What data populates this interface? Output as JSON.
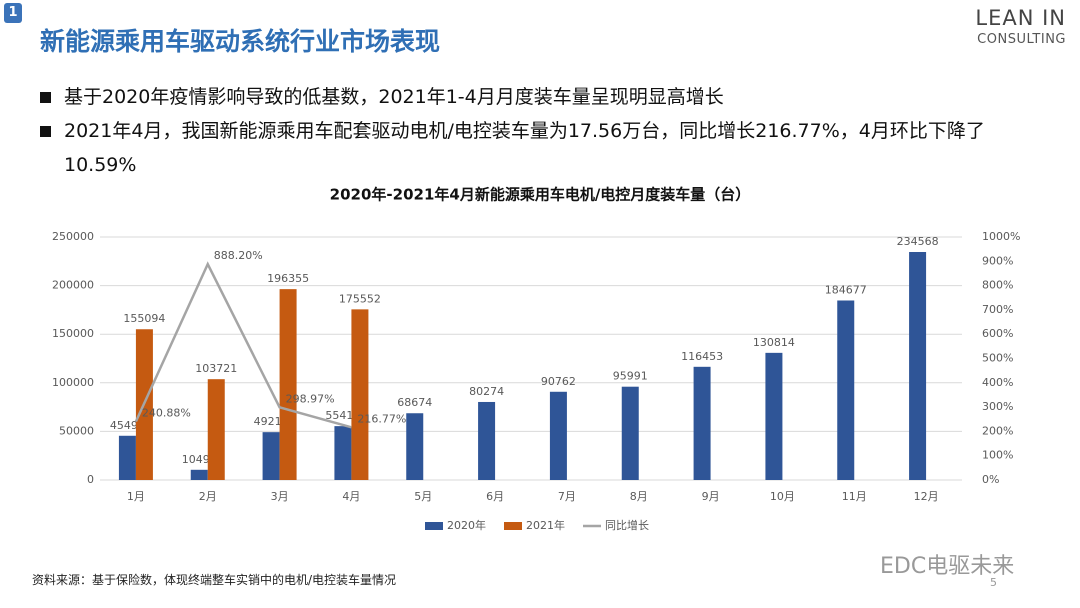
{
  "header": {
    "badge": "1",
    "title": "新能源乘用车驱动系统行业市场表现",
    "logo_line1": "LEAN IN",
    "logo_line2": "CONSULTING"
  },
  "bullets": [
    "基于2020年疫情影响导致的低基数，2021年1-4月月度装车量呈现明显高增长",
    "2021年4月，我国新能源乘用车配套驱动电机/电控装车量为17.56万台，同比增长216.77%，4月环比下降了10.59%"
  ],
  "chart_data": {
    "type": "bar",
    "title": "2020年-2021年4月新能源乘用车电机/电控月度装车量（台）",
    "categories": [
      "1月",
      "2月",
      "3月",
      "4月",
      "5月",
      "6月",
      "7月",
      "8月",
      "9月",
      "10月",
      "11月",
      "12月"
    ],
    "series": [
      {
        "name": "2020年",
        "type": "bar",
        "color": "#2f5597",
        "values": [
          45498,
          10496,
          49215,
          55419,
          68674,
          80274,
          90762,
          95991,
          116453,
          130814,
          184677,
          234568
        ]
      },
      {
        "name": "2021年",
        "type": "bar",
        "color": "#c55a11",
        "values": [
          155094,
          103721,
          196355,
          175552,
          null,
          null,
          null,
          null,
          null,
          null,
          null,
          null
        ]
      },
      {
        "name": "同比增长",
        "type": "line",
        "axis": "y2",
        "color": "#a5a5a5",
        "values": [
          240.88,
          888.2,
          298.97,
          216.77,
          null,
          null,
          null,
          null,
          null,
          null,
          null,
          null
        ],
        "value_labels": [
          "240.88%",
          "888.20%",
          "298.97%",
          "216.77%",
          null,
          null,
          null,
          null,
          null,
          null,
          null,
          null
        ]
      }
    ],
    "ylim": [
      0,
      250000
    ],
    "yticks": [
      0,
      50000,
      100000,
      150000,
      200000,
      250000
    ],
    "y2lim": [
      0,
      1000
    ],
    "y2ticks": [
      {
        "value": 0,
        "label": "0%"
      },
      {
        "value": 100,
        "label": "100%"
      },
      {
        "value": 200,
        "label": "200%"
      },
      {
        "value": 300,
        "label": "300%"
      },
      {
        "value": 400,
        "label": "400%"
      },
      {
        "value": 500,
        "label": "500%"
      },
      {
        "value": 600,
        "label": "600%"
      },
      {
        "value": 700,
        "label": "700%"
      },
      {
        "value": 800,
        "label": "800%"
      },
      {
        "value": 900,
        "label": "900%"
      },
      {
        "value": 1000,
        "label": "1000%"
      }
    ],
    "grid": true,
    "legend": "bottom"
  },
  "footer": {
    "source": "资料来源：基于保险数，体现终端整车实销中的电机/电控装车量情况",
    "watermark": "EDC电驱未来",
    "page": "5"
  }
}
